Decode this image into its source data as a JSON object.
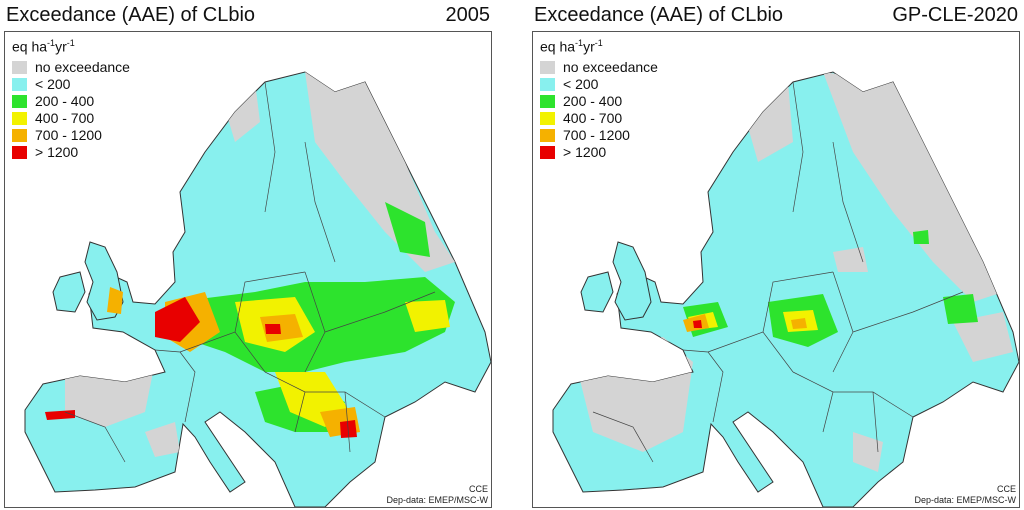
{
  "panels": [
    {
      "title": "Exceedance (AAE) of CLbio",
      "year": "2005",
      "units": {
        "base": "eq ha",
        "exp1": "-1",
        "mid": "yr",
        "exp2": "-1"
      },
      "legend": [
        {
          "label": "no exceedance",
          "color": "#d4d4d4"
        },
        {
          "label": "< 200",
          "color": "#88f0ee"
        },
        {
          "label": "200 - 400",
          "color": "#2de32d"
        },
        {
          "label": "400 - 700",
          "color": "#f2f200"
        },
        {
          "label": "700 - 1200",
          "color": "#f5b100"
        },
        {
          "label": "> 1200",
          "color": "#e80000"
        }
      ],
      "credit_line1": "CCE",
      "credit_line2": "Dep-data: EMEP/MSC-W"
    },
    {
      "title": "Exceedance (AAE) of CLbio",
      "year": "GP-CLE-2020",
      "units": {
        "base": "eq ha",
        "exp1": "-1",
        "mid": "yr",
        "exp2": "-1"
      },
      "legend": [
        {
          "label": "no exceedance",
          "color": "#d4d4d4"
        },
        {
          "label": "< 200",
          "color": "#88f0ee"
        },
        {
          "label": "200 - 400",
          "color": "#2de32d"
        },
        {
          "label": "400 - 700",
          "color": "#f2f200"
        },
        {
          "label": "700 - 1200",
          "color": "#f5b100"
        },
        {
          "label": "> 1200",
          "color": "#e80000"
        }
      ],
      "credit_line1": "CCE",
      "credit_line2": "Dep-data: EMEP/MSC-W"
    }
  ],
  "colors": {
    "background_land": "#88f0ee",
    "no_exceedance": "#d4d4d4",
    "border_lines": "#444444"
  }
}
